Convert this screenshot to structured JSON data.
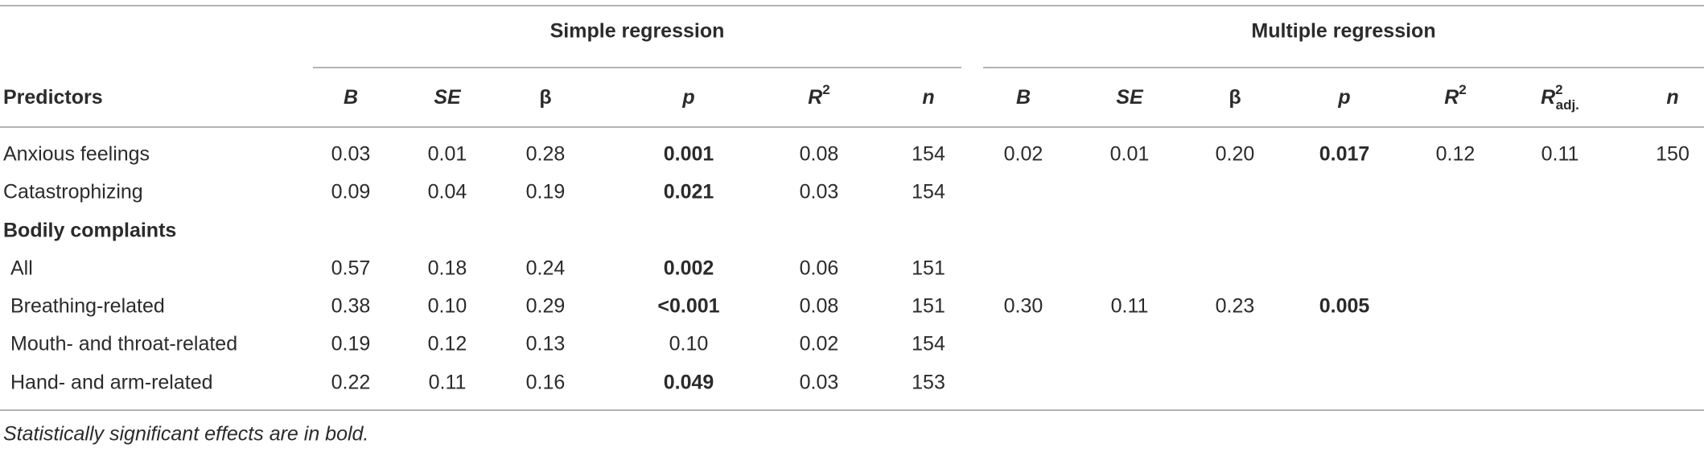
{
  "table": {
    "groups": [
      "Simple regression",
      "Multiple regression"
    ],
    "columns": [
      {
        "text": "Predictors"
      },
      {
        "text": "B",
        "italic": true
      },
      {
        "text": "SE",
        "italic": true
      },
      {
        "text": "β"
      },
      {
        "text": "p",
        "italic": true
      },
      {
        "text": "R",
        "sup": "2",
        "italic": true
      },
      {
        "text": "n",
        "italic": true
      },
      {
        "text": "B",
        "italic": true
      },
      {
        "text": "SE",
        "italic": true
      },
      {
        "text": "β"
      },
      {
        "text": "p",
        "italic": true
      },
      {
        "text": "R",
        "sup": "2",
        "italic": true
      },
      {
        "text": "R",
        "sup": "2",
        "sub": "adj.",
        "italic": true
      },
      {
        "text": "n",
        "italic": true
      }
    ],
    "rows": [
      {
        "cells": [
          "Anxious feelings",
          "0.03",
          "0.01",
          "0.28",
          "0.001",
          "0.08",
          "154",
          "0.02",
          "0.01",
          "0.20",
          "0.017",
          "0.12",
          "0.11",
          "150"
        ],
        "bold": [
          4,
          10
        ]
      },
      {
        "cells": [
          "Catastrophizing",
          "0.09",
          "0.04",
          "0.19",
          "0.021",
          "0.03",
          "154"
        ],
        "bold": [
          4
        ]
      },
      {
        "cells": [
          "Bodily complaints"
        ],
        "section": true
      },
      {
        "cells": [
          "All",
          "0.57",
          "0.18",
          "0.24",
          "0.002",
          "0.06",
          "151"
        ],
        "bold": [
          4
        ],
        "indent": true
      },
      {
        "cells": [
          "Breathing-related",
          "0.38",
          "0.10",
          "0.29",
          "<0.001",
          "0.08",
          "151",
          "0.30",
          "0.11",
          "0.23",
          "0.005"
        ],
        "bold": [
          4,
          10
        ],
        "indent": true
      },
      {
        "cells": [
          "Mouth- and throat-related",
          "0.19",
          "0.12",
          "0.13",
          "0.10",
          "0.02",
          "154"
        ],
        "indent": true
      },
      {
        "cells": [
          "Hand- and arm-related",
          "0.22",
          "0.11",
          "0.16",
          "0.049",
          "0.03",
          "153"
        ],
        "bold": [
          4
        ],
        "indent": true
      }
    ],
    "footnote": "Statistically significant effects are in bold."
  }
}
